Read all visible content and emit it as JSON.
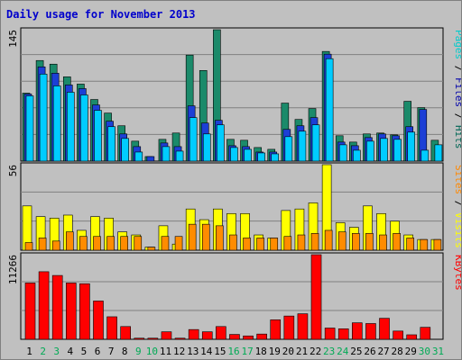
{
  "chart_data": {
    "type": "bar",
    "title": "Daily usage for November 2013",
    "days": [
      "1",
      "2",
      "3",
      "4",
      "5",
      "6",
      "7",
      "8",
      "9",
      "10",
      "11",
      "12",
      "13",
      "14",
      "15",
      "16",
      "17",
      "18",
      "19",
      "20",
      "21",
      "22",
      "23",
      "24",
      "25",
      "26",
      "27",
      "28",
      "29",
      "30",
      "31"
    ],
    "weekend_days": [
      "2",
      "3",
      "9",
      "10",
      "16",
      "17",
      "23",
      "24",
      "30",
      "31"
    ],
    "panels": [
      {
        "name": "top",
        "ymax_label": "145",
        "ymax": 145,
        "legend": [
          {
            "text": "Pages",
            "color": "#00cccc"
          },
          {
            "text": " / ",
            "color": "#000000"
          },
          {
            "text": "Files",
            "color": "#0000aa"
          },
          {
            "text": " / ",
            "color": "#000000"
          },
          {
            "text": "Hits",
            "color": "#006655"
          }
        ],
        "series": [
          {
            "name": "Hits",
            "color": "#1b8a6a",
            "values": [
              75,
              111,
              107,
              93,
              85,
              68,
              53,
              39,
              22,
              5,
              24,
              31,
              117,
              100,
              145,
              24,
              23,
              15,
              13,
              64,
              46,
              58,
              121,
              28,
              21,
              30,
              31,
              29,
              66,
              59,
              23
            ]
          },
          {
            "name": "Files",
            "color": "#1c3fd6",
            "values": [
              74,
              104,
              97,
              84,
              80,
              62,
              44,
              30,
              16,
              5,
              20,
              16,
              61,
              42,
              45,
              17,
              16,
              10,
              10,
              35,
              39,
              48,
              118,
              21,
              17,
              26,
              30,
              28,
              38,
              57,
              0
            ]
          },
          {
            "name": "Pages",
            "color": "#00ccff",
            "values": [
              72,
              96,
              83,
              76,
              73,
              56,
              38,
              25,
              10,
              0,
              16,
              11,
              48,
              30,
              40,
              15,
              13,
              9,
              8,
              27,
              33,
              40,
              113,
              18,
              12,
              22,
              25,
              24,
              32,
              12,
              18
            ]
          }
        ]
      },
      {
        "name": "middle",
        "ymax_label": "56",
        "ymax": 56,
        "legend": [
          {
            "text": "Sites",
            "color": "#ff8800"
          },
          {
            "text": " / ",
            "color": "#000000"
          },
          {
            "text": "Visits",
            "color": "#ffff00"
          }
        ],
        "series": [
          {
            "name": "Visits",
            "color": "#ffff00",
            "values": [
              29,
              22,
              21,
              23,
              13,
              22,
              21,
              12,
              10,
              2,
              16,
              4,
              27,
              20,
              27,
              24,
              24,
              10,
              8,
              26,
              27,
              31,
              56,
              18,
              15,
              29,
              24,
              19,
              10,
              7,
              7
            ]
          },
          {
            "name": "Sites",
            "color": "#ff8c00",
            "values": [
              5,
              8,
              6,
              12,
              9,
              9,
              9,
              9,
              9,
              2,
              9,
              9,
              17,
              17,
              16,
              10,
              8,
              8,
              8,
              9,
              10,
              11,
              13,
              12,
              11,
              11,
              10,
              11,
              8,
              7,
              7
            ]
          }
        ]
      },
      {
        "name": "bottom",
        "ymax_label": "11266",
        "ymax": 11266,
        "legend": [
          {
            "text": "KBytes",
            "color": "#ff0000"
          }
        ],
        "series": [
          {
            "name": "KBytes",
            "color": "#ff0000",
            "values": [
              7500,
              9000,
              8500,
              7500,
              7400,
              5100,
              3000,
              1700,
              150,
              150,
              1000,
              150,
              1300,
              1000,
              1700,
              650,
              450,
              700,
              2600,
              3100,
              3400,
              11266,
              1500,
              1400,
              2200,
              2100,
              2800,
              1100,
              600,
              1600,
              0
            ]
          }
        ]
      }
    ],
    "grid": true
  }
}
